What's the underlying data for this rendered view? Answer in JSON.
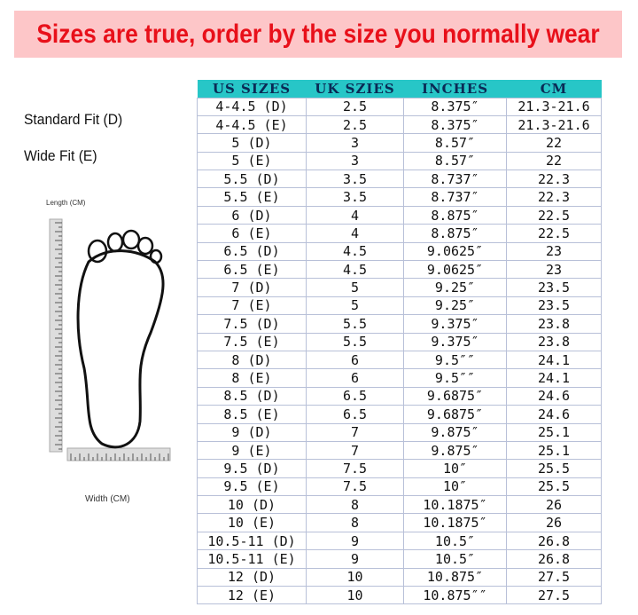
{
  "banner": {
    "text": "Sizes are true, order by the size you normally wear",
    "bg": "#fdc6c8",
    "color": "#e8101a"
  },
  "fits": [
    "Standard Fit (D)",
    "Wide Fit (E)"
  ],
  "diagram": {
    "length_label": "Length (CM)",
    "width_label": "Width (CM)"
  },
  "table": {
    "header_color": "#27c6c7",
    "headers": [
      "US SIZES",
      "UK SZIES",
      "INCHES",
      "CM"
    ],
    "rows": [
      [
        "4-4.5 (D)",
        "2.5",
        "8.375″",
        "21.3-21.6"
      ],
      [
        "4-4.5 (E)",
        "2.5",
        "8.375″",
        "21.3-21.6"
      ],
      [
        "5 (D)",
        "3",
        "8.57″",
        "22"
      ],
      [
        "5 (E)",
        "3",
        "8.57″",
        "22"
      ],
      [
        "5.5 (D)",
        "3.5",
        "8.737″",
        "22.3"
      ],
      [
        "5.5 (E)",
        "3.5",
        "8.737″",
        "22.3"
      ],
      [
        "6 (D)",
        "4",
        "8.875″",
        "22.5"
      ],
      [
        "6 (E)",
        "4",
        "8.875″",
        "22.5"
      ],
      [
        "6.5 (D)",
        "4.5",
        "9.0625″",
        "23"
      ],
      [
        "6.5 (E)",
        "4.5",
        "9.0625″",
        "23"
      ],
      [
        "7 (D)",
        "5",
        "9.25″",
        "23.5"
      ],
      [
        "7 (E)",
        "5",
        "9.25″",
        "23.5"
      ],
      [
        "7.5 (D)",
        "5.5",
        "9.375″",
        "23.8"
      ],
      [
        "7.5 (E)",
        "5.5",
        "9.375″",
        "23.8"
      ],
      [
        "8 (D)",
        "6",
        "9.5″″",
        "24.1"
      ],
      [
        "8 (E)",
        "6",
        "9.5″″",
        "24.1"
      ],
      [
        "8.5 (D)",
        "6.5",
        "9.6875″",
        "24.6"
      ],
      [
        "8.5 (E)",
        "6.5",
        "9.6875″",
        "24.6"
      ],
      [
        "9 (D)",
        "7",
        "9.875″",
        "25.1"
      ],
      [
        "9 (E)",
        "7",
        "9.875″",
        "25.1"
      ],
      [
        "9.5 (D)",
        "7.5",
        "10″",
        "25.5"
      ],
      [
        "9.5 (E)",
        "7.5",
        "10″",
        "25.5"
      ],
      [
        "10 (D)",
        "8",
        "10.1875″",
        "26"
      ],
      [
        "10 (E)",
        "8",
        "10.1875″",
        "26"
      ],
      [
        "10.5-11 (D)",
        "9",
        "10.5″",
        "26.8"
      ],
      [
        "10.5-11 (E)",
        "9",
        "10.5″",
        "26.8"
      ],
      [
        "12 (D)",
        "10",
        "10.875″",
        "27.5"
      ],
      [
        "12 (E)",
        "10",
        "10.875″″",
        "27.5"
      ]
    ]
  }
}
